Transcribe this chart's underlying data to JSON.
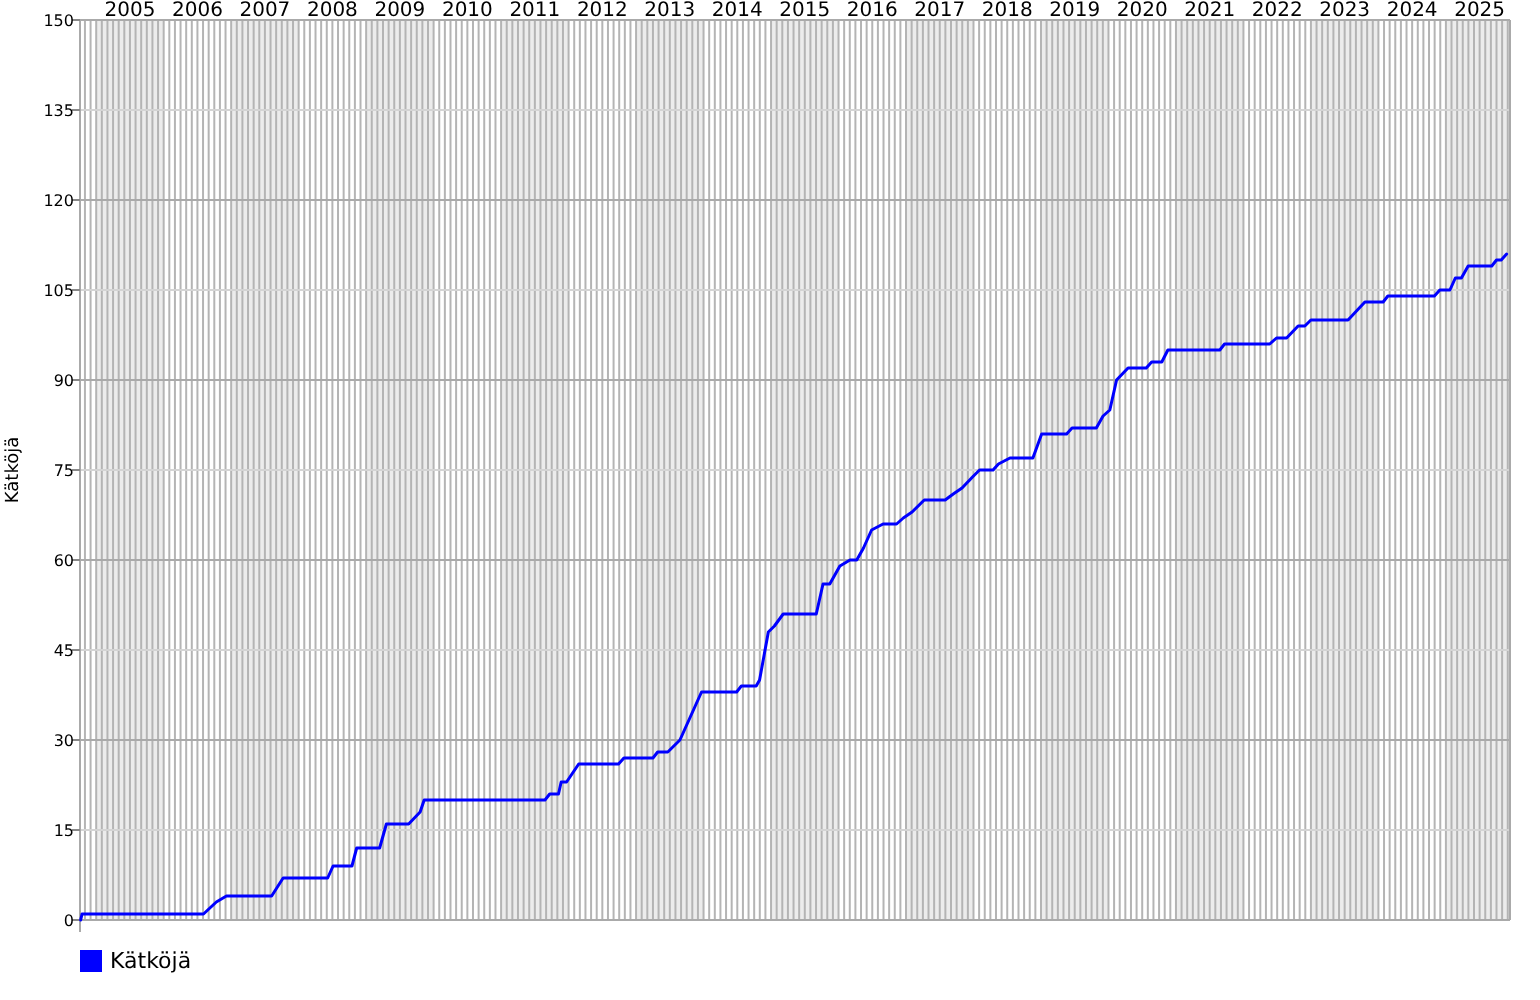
{
  "chart_data": {
    "type": "line",
    "ylabel": "Kätköjä",
    "xlim": [
      2004.76,
      2025.95
    ],
    "ylim": [
      0,
      150
    ],
    "xticks": [
      {
        "value": 2005.5,
        "label": "2005"
      },
      {
        "value": 2006.5,
        "label": "2006"
      },
      {
        "value": 2007.5,
        "label": "2007"
      },
      {
        "value": 2008.5,
        "label": "2008"
      },
      {
        "value": 2009.5,
        "label": "2009"
      },
      {
        "value": 2010.5,
        "label": "2010"
      },
      {
        "value": 2011.5,
        "label": "2011"
      },
      {
        "value": 2012.5,
        "label": "2012"
      },
      {
        "value": 2013.5,
        "label": "2013"
      },
      {
        "value": 2014.5,
        "label": "2014"
      },
      {
        "value": 2015.5,
        "label": "2015"
      },
      {
        "value": 2016.5,
        "label": "2016"
      },
      {
        "value": 2017.5,
        "label": "2017"
      },
      {
        "value": 2018.5,
        "label": "2018"
      },
      {
        "value": 2019.5,
        "label": "2019"
      },
      {
        "value": 2020.5,
        "label": "2020"
      },
      {
        "value": 2021.5,
        "label": "2021"
      },
      {
        "value": 2022.5,
        "label": "2022"
      },
      {
        "value": 2023.5,
        "label": "2023"
      },
      {
        "value": 2024.5,
        "label": "2024"
      },
      {
        "value": 2025.5,
        "label": "2025"
      }
    ],
    "yticks": [
      0,
      15,
      30,
      45,
      60,
      75,
      90,
      105,
      120,
      135,
      150
    ],
    "bands": [
      {
        "axis": "x",
        "from": 2005,
        "to": 2006,
        "color": "#ececec"
      },
      {
        "axis": "x",
        "from": 2007,
        "to": 2008,
        "color": "#ececec"
      },
      {
        "axis": "x",
        "from": 2009,
        "to": 2010,
        "color": "#ececec"
      },
      {
        "axis": "x",
        "from": 2011,
        "to": 2012,
        "color": "#ececec"
      },
      {
        "axis": "x",
        "from": 2013,
        "to": 2014,
        "color": "#ececec"
      },
      {
        "axis": "x",
        "from": 2015,
        "to": 2016,
        "color": "#ececec"
      },
      {
        "axis": "x",
        "from": 2017,
        "to": 2018,
        "color": "#ececec"
      },
      {
        "axis": "x",
        "from": 2019,
        "to": 2020,
        "color": "#ececec"
      },
      {
        "axis": "x",
        "from": 2021,
        "to": 2022,
        "color": "#ececec"
      },
      {
        "axis": "x",
        "from": 2023,
        "to": 2024,
        "color": "#ececec"
      },
      {
        "axis": "x",
        "from": 2025,
        "to": 2025.95,
        "color": "#ececec"
      }
    ],
    "grid": true,
    "legend": "bottom left",
    "marker": "none",
    "line_style": "solid",
    "series": [
      {
        "name": "Kätköjä",
        "color": "#0000ff",
        "x": [
          2004.77,
          2004.79,
          2006.59,
          2006.78,
          2006.93,
          2007.6,
          2007.77,
          2008.43,
          2008.51,
          2008.79,
          2008.86,
          2009.2,
          2009.3,
          2009.63,
          2009.8,
          2009.86,
          2011.65,
          2011.72,
          2011.85,
          2011.89,
          2011.97,
          2012.15,
          2012.74,
          2012.82,
          2013.25,
          2013.32,
          2013.47,
          2013.65,
          2013.97,
          2014.49,
          2014.56,
          2014.78,
          2014.83,
          2014.96,
          2015.05,
          2015.18,
          2015.67,
          2015.77,
          2015.87,
          2016.02,
          2016.17,
          2016.27,
          2016.37,
          2016.49,
          2016.66,
          2016.86,
          2016.96,
          2017.09,
          2017.27,
          2017.58,
          2017.7,
          2017.83,
          2018.0,
          2018.09,
          2018.29,
          2018.37,
          2018.54,
          2018.88,
          2019.01,
          2019.38,
          2019.46,
          2019.82,
          2019.92,
          2020.02,
          2020.12,
          2020.29,
          2020.56,
          2020.64,
          2020.79,
          2020.88,
          2021.65,
          2021.72,
          2022.39,
          2022.49,
          2022.64,
          2022.81,
          2022.91,
          2023.0,
          2023.55,
          2023.8,
          2024.07,
          2024.14,
          2024.83,
          2024.91,
          2025.06,
          2025.14,
          2025.23,
          2025.33,
          2025.68,
          2025.75,
          2025.82,
          2025.9
        ],
        "values": [
          0,
          1,
          1,
          3,
          4,
          4,
          7,
          7,
          9,
          9,
          12,
          12,
          16,
          16,
          18,
          20,
          20,
          21,
          21,
          23,
          23,
          26,
          26,
          27,
          27,
          28,
          28,
          30,
          38,
          38,
          39,
          39,
          40,
          48,
          49,
          51,
          51,
          56,
          56,
          59,
          60,
          60,
          62,
          65,
          66,
          66,
          67,
          68,
          70,
          70,
          71,
          72,
          74,
          75,
          75,
          76,
          77,
          77,
          81,
          81,
          82,
          82,
          84,
          85,
          90,
          92,
          92,
          93,
          93,
          95,
          95,
          96,
          96,
          97,
          97,
          99,
          99,
          100,
          100,
          103,
          103,
          104,
          104,
          105,
          105,
          107,
          107,
          109,
          109,
          110,
          110,
          111
        ]
      }
    ]
  }
}
